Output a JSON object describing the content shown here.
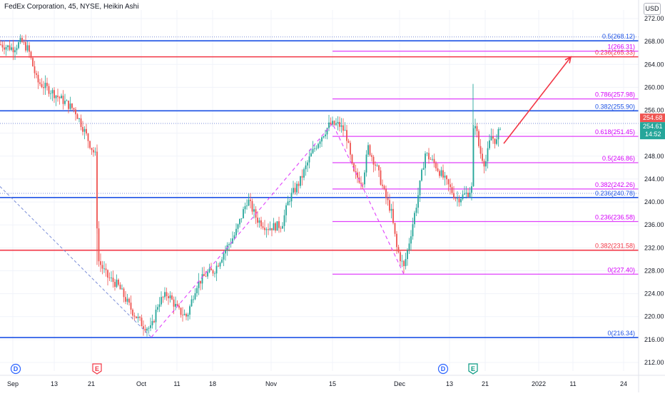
{
  "header": {
    "title": "FedEx Corporation, 45, NYSE, Heikin Ashi",
    "currency_button": "USD"
  },
  "colors": {
    "up": "#26a69a",
    "down": "#ef5350",
    "blue": "#1e53e5",
    "red": "#f23645",
    "magenta": "#e040fb",
    "fib_text": "#d500f9",
    "dotted_blue": "#7b8ed8"
  },
  "chart_data": {
    "type": "candlestick",
    "style": "Heikin Ashi",
    "ylim": [
      210.5,
      273.5
    ],
    "y_ticks": [
      212,
      216,
      220,
      224,
      228,
      232,
      236,
      240,
      244,
      248,
      252,
      256,
      260,
      264,
      268,
      272
    ],
    "y_tick_labels": [
      "212.00",
      "216.00",
      "220.00",
      "224.00",
      "228.00",
      "232.00",
      "236.00",
      "240.00",
      "244.00",
      "248.00",
      "252.00",
      "256.00",
      "260.00",
      "264.00",
      "268.00",
      "272.00"
    ],
    "x_tick_labels": [
      "Sep",
      "13",
      "21",
      "Oct",
      "11",
      "18",
      "Nov",
      "15",
      "Dec",
      "13",
      "21",
      "2022",
      "11",
      "24"
    ],
    "price_labels": [
      {
        "text": "254.68",
        "value": 254.68,
        "color": "#ef5350"
      },
      {
        "text": "254.61",
        "value": 254.61,
        "color": "#26a69a"
      },
      {
        "text": "14:52",
        "value": 253.2,
        "color": "#26a69a"
      }
    ],
    "horizontal_levels": [
      {
        "price": 268.12,
        "label": "0.5(268.12)",
        "color": "#1e53e5"
      },
      {
        "price": 265.33,
        "label": "0.236(265.33)",
        "color": "#f23645"
      },
      {
        "price": 255.9,
        "label": "0.382(255.90)",
        "color": "#1e53e5"
      },
      {
        "price": 240.78,
        "label": "0.236(240.78)",
        "color": "#1e53e5"
      },
      {
        "price": 231.58,
        "label": "0.382(231.58)",
        "color": "#f23645"
      },
      {
        "price": 216.34,
        "label": "0(216.34)",
        "color": "#1e53e5"
      }
    ],
    "fib_levels": [
      {
        "price": 266.31,
        "label": "1(266.31)"
      },
      {
        "price": 257.98,
        "label": "0.786(257.98)"
      },
      {
        "price": 251.45,
        "label": "0.618(251.45)"
      },
      {
        "price": 246.86,
        "label": "0.5(246.86)"
      },
      {
        "price": 242.26,
        "label": "0.382(242.26)"
      },
      {
        "price": 236.58,
        "label": "0.236(236.58)"
      },
      {
        "price": 227.4,
        "label": "0(227.40)"
      }
    ],
    "price_path": [
      [
        0,
        267.5
      ],
      [
        18,
        266.8
      ],
      [
        30,
        268.0
      ],
      [
        40,
        266.5
      ],
      [
        52,
        261.0
      ],
      [
        70,
        259.5
      ],
      [
        90,
        257.5
      ],
      [
        105,
        256.0
      ],
      [
        118,
        252.5
      ],
      [
        128,
        249.5
      ],
      [
        134,
        248.0
      ],
      [
        137,
        230.0
      ],
      [
        150,
        227.0
      ],
      [
        165,
        225.5
      ],
      [
        185,
        221.0
      ],
      [
        200,
        218.5
      ],
      [
        212,
        217.8
      ],
      [
        222,
        222.5
      ],
      [
        235,
        224.0
      ],
      [
        250,
        221.0
      ],
      [
        262,
        220.0
      ],
      [
        275,
        225.5
      ],
      [
        290,
        227.5
      ],
      [
        300,
        228.0
      ],
      [
        315,
        231.5
      ],
      [
        330,
        234.5
      ],
      [
        347,
        240.5
      ],
      [
        360,
        237.0
      ],
      [
        375,
        235.5
      ],
      [
        395,
        236.0
      ],
      [
        405,
        240.5
      ],
      [
        420,
        243.5
      ],
      [
        435,
        248.0
      ],
      [
        448,
        251.0
      ],
      [
        462,
        253.5
      ],
      [
        475,
        253.5
      ],
      [
        485,
        252.0
      ],
      [
        495,
        245.0
      ],
      [
        508,
        243.5
      ],
      [
        516,
        249.5
      ],
      [
        528,
        246.0
      ],
      [
        540,
        241.0
      ],
      [
        548,
        238.5
      ],
      [
        556,
        232.0
      ],
      [
        566,
        228.5
      ],
      [
        575,
        234.0
      ],
      [
        585,
        240.5
      ],
      [
        596,
        248.5
      ],
      [
        610,
        246.5
      ],
      [
        625,
        243.5
      ],
      [
        640,
        240.5
      ],
      [
        655,
        241.5
      ],
      [
        662,
        242.5
      ],
      [
        664,
        255.5
      ],
      [
        672,
        249.0
      ],
      [
        680,
        246.5
      ],
      [
        688,
        251.5
      ],
      [
        696,
        250.5
      ],
      [
        703,
        254.6
      ]
    ],
    "events": [
      {
        "label": "D",
        "kind": "dividend"
      },
      {
        "label": "E",
        "kind": "earnings"
      },
      {
        "label": "D",
        "kind": "dividend"
      },
      {
        "label": "E",
        "kind": "earnings"
      }
    ]
  }
}
